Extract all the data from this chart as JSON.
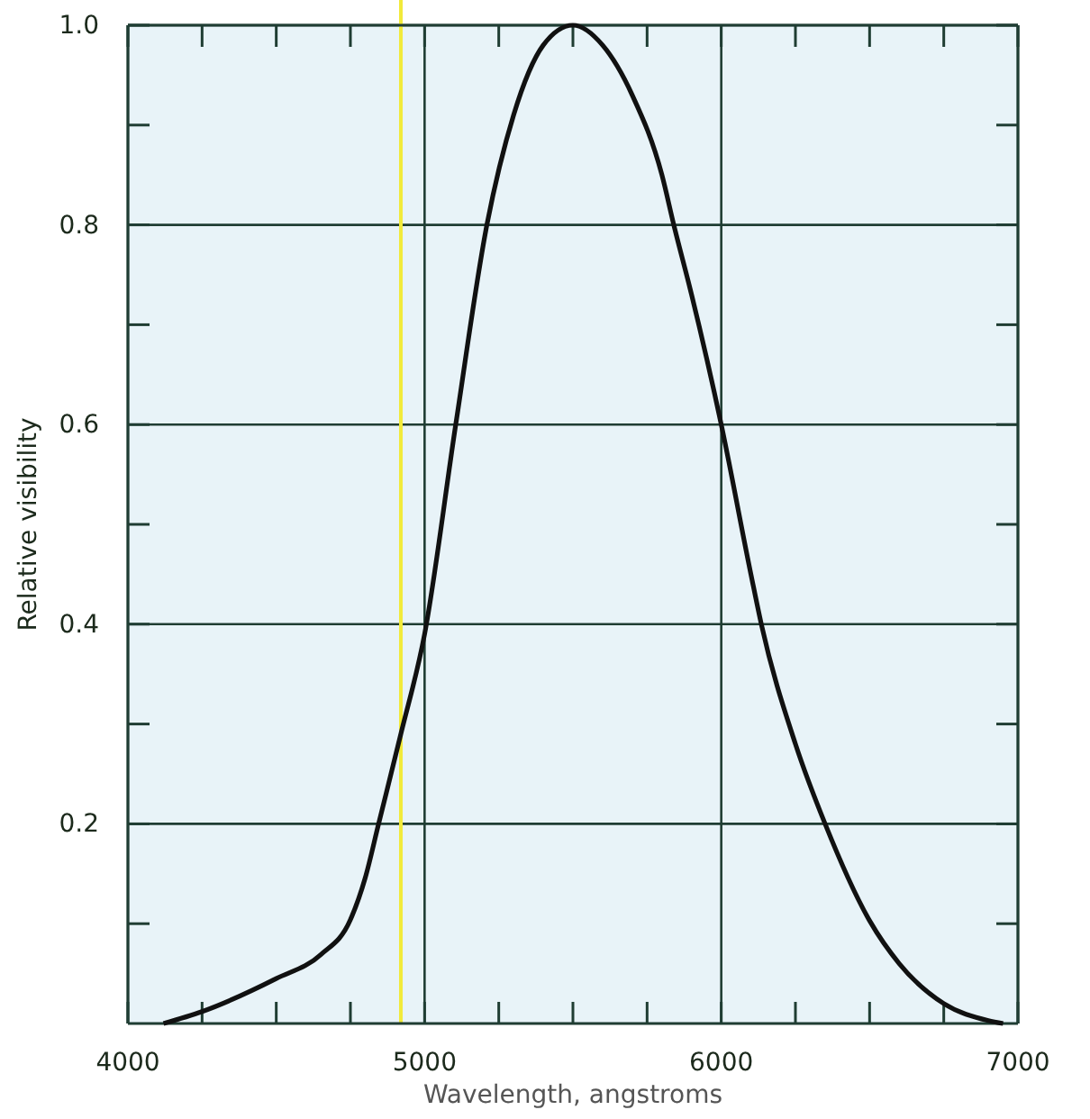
{
  "chart_data": {
    "type": "line",
    "xlabel": "Wavelength, angstroms",
    "ylabel": "Relative visibility",
    "xlim": [
      4000,
      7000
    ],
    "ylim": [
      0,
      1
    ],
    "xticks": [
      4000,
      {
        "value": 4250,
        "label": null
      },
      {
        "value": 4500,
        "label": null
      },
      {
        "value": 4750,
        "label": null
      },
      5000,
      {
        "value": 5250,
        "label": null
      },
      {
        "value": 5500,
        "label": null
      },
      {
        "value": 5750,
        "label": null
      },
      6000,
      {
        "value": 6250,
        "label": null
      },
      {
        "value": 6500,
        "label": null
      },
      {
        "value": 6750,
        "label": null
      },
      7000
    ],
    "yticks": [
      {
        "value": 0.1,
        "label": null
      },
      0.2,
      {
        "value": 0.3,
        "label": null
      },
      0.4,
      {
        "value": 0.5,
        "label": null
      },
      0.6,
      {
        "value": 0.7,
        "label": null
      },
      0.8,
      {
        "value": 0.9,
        "label": null
      },
      {
        "value": 1,
        "label": "1.0"
      }
    ],
    "grid": true,
    "series": [
      {
        "color": "#111111",
        "x": [
          4120,
          4250,
          4500,
          4650,
          4750,
          4800,
          4845,
          4920,
          5000,
          5105,
          5210,
          5300,
          5400,
          5500,
          5600,
          5700,
          5800,
          5840,
          5900,
          6000,
          6100,
          6135,
          6250,
          6350,
          6500,
          6600,
          6750,
          6900,
          6950
        ],
        "values": [
          0,
          0.012,
          0.045,
          0.069,
          0.104,
          0.146,
          0.2,
          0.29,
          0.39,
          0.6,
          0.8,
          0.91,
          0.98,
          1,
          0.98,
          0.93,
          0.85,
          0.8,
          0.73,
          0.6,
          0.45,
          0.4,
          0.28,
          0.2,
          0.103,
          0.06,
          0.02,
          0.003,
          0
        ]
      }
    ],
    "ref_lines": [
      {
        "axis": "x",
        "value": 4920,
        "color": "#f2ea3a"
      }
    ]
  }
}
